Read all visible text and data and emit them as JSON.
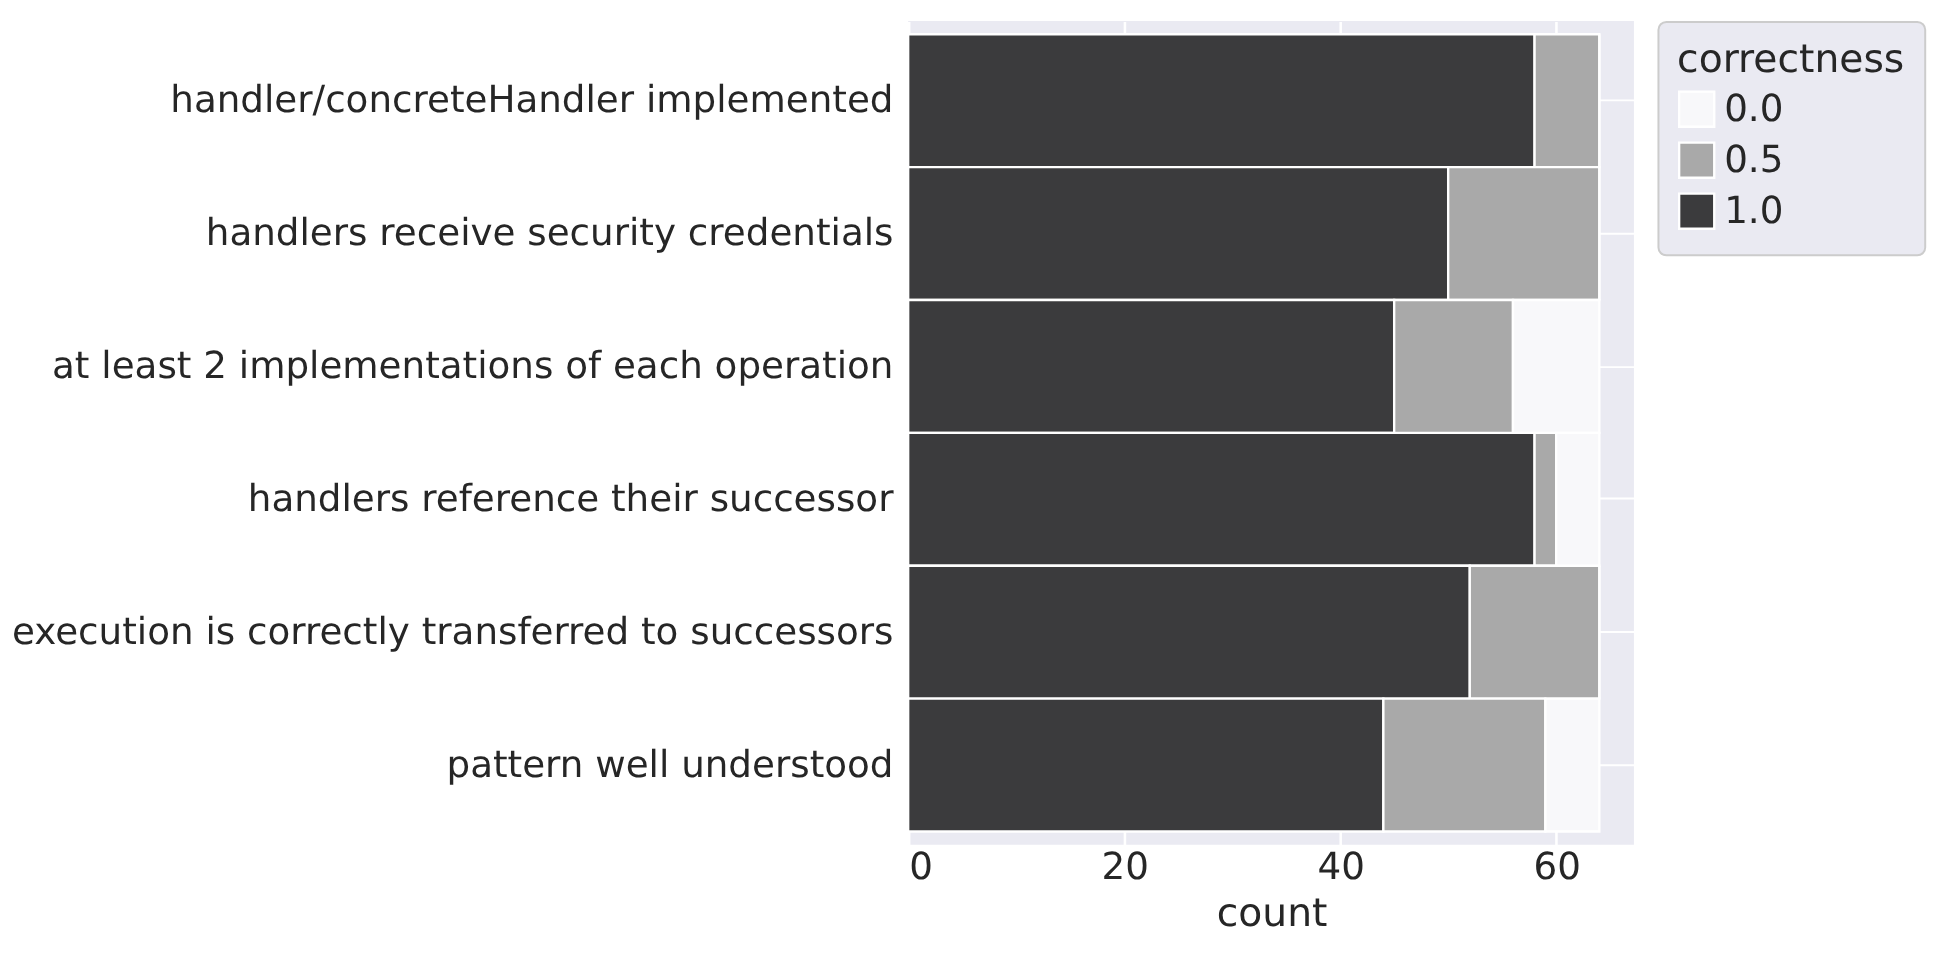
{
  "chart_data": {
    "type": "bar",
    "orientation": "horizontal",
    "stacked": true,
    "xlabel": "count",
    "legend_title": "correctness",
    "legend": "top right",
    "grid": true,
    "categories": [
      "handler/concreteHandler implemented",
      "handlers receive security credentials",
      "at least 2 implementations of each operation",
      "handlers reference their successor",
      "execution is correctly transferred to successors",
      "pattern well understood"
    ],
    "series": [
      {
        "name": "1.0",
        "color": "#3b3b3d",
        "values": [
          58,
          50,
          45,
          58,
          52,
          44
        ]
      },
      {
        "name": "0.5",
        "color": "#a9a9a9",
        "values": [
          6,
          14,
          11,
          2,
          12,
          15
        ]
      },
      {
        "name": "0.0",
        "color": "#f8f8fa",
        "values": [
          0,
          0,
          8,
          4,
          0,
          5
        ]
      }
    ],
    "xlim": [
      0,
      67.2
    ],
    "xticks": [
      0,
      20,
      40,
      60
    ]
  }
}
